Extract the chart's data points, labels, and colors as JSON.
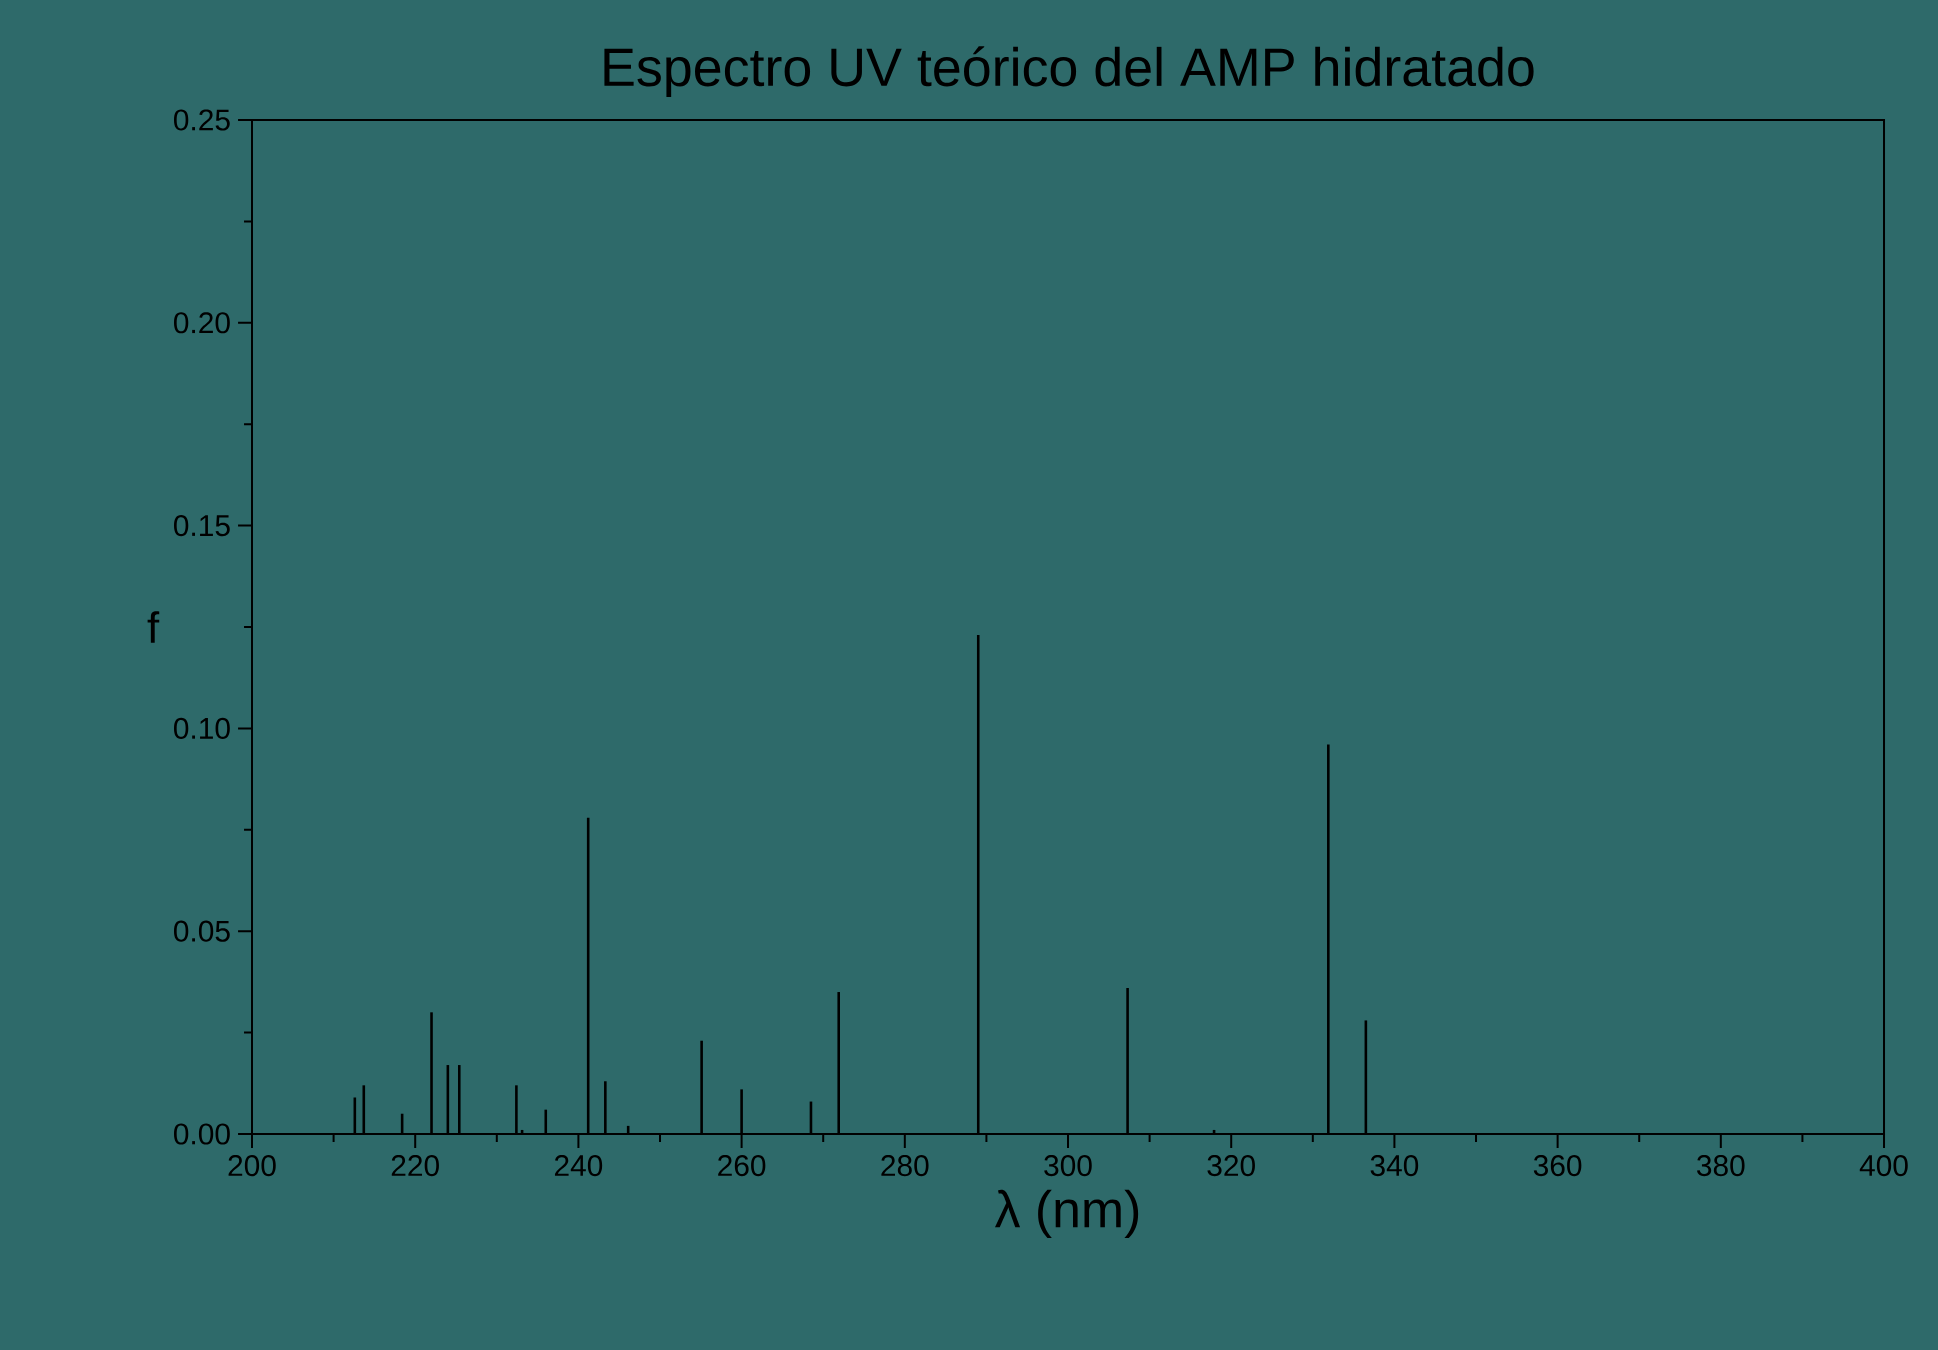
{
  "chart_data": {
    "type": "bar",
    "title": "Espectro UV teórico del AMP hidratado",
    "xlabel": "λ (nm)",
    "ylabel": "f",
    "x": [
      212.6,
      213.7,
      218.4,
      222.0,
      224.0,
      225.4,
      232.4,
      233.1,
      236.0,
      241.2,
      243.3,
      246.1,
      255.1,
      260.0,
      268.5,
      271.9,
      289.0,
      307.3,
      317.9,
      331.9,
      336.5
    ],
    "values": [
      0.009,
      0.012,
      0.005,
      0.03,
      0.017,
      0.017,
      0.012,
      0.001,
      0.006,
      0.078,
      0.013,
      0.002,
      0.023,
      0.011,
      0.008,
      0.035,
      0.123,
      0.036,
      0.001,
      0.096,
      0.028
    ],
    "color": "#000000",
    "xlim": [
      200,
      400
    ],
    "xticks": [
      200,
      220,
      240,
      260,
      280,
      300,
      320,
      340,
      360,
      380,
      400
    ],
    "ylim": [
      0,
      0.25
    ],
    "yticks": [
      {
        "value": 0,
        "label": "0.00"
      },
      {
        "value": 0.05,
        "label": "0.05"
      },
      {
        "value": 0.1,
        "label": "0.10"
      },
      {
        "value": 0.15,
        "label": "0.15"
      },
      {
        "value": 0.2,
        "label": "0.20"
      },
      {
        "value": 0.25,
        "label": "0.25"
      }
    ],
    "grid": false
  }
}
